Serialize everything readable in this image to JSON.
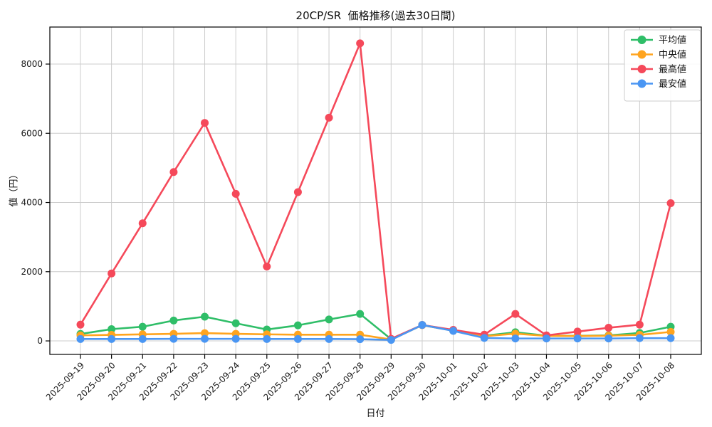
{
  "chart_data": {
    "type": "line",
    "title": "20CP/SR  価格推移(過去30日間)",
    "xlabel": "日付",
    "ylabel": "値（円）",
    "x": [
      "2025-09-19",
      "2025-09-20",
      "2025-09-21",
      "2025-09-22",
      "2025-09-23",
      "2025-09-24",
      "2025-09-25",
      "2025-09-26",
      "2025-09-27",
      "2025-09-28",
      "2025-09-29",
      "2025-09-30",
      "2025-10-01",
      "2025-10-02",
      "2025-10-03",
      "2025-10-04",
      "2025-10-05",
      "2025-10-06",
      "2025-10-07",
      "2025-10-08"
    ],
    "yticks": [
      0,
      2000,
      4000,
      6000,
      8000
    ],
    "ylim": [
      -390,
      9070
    ],
    "grid": true,
    "legend_position": "upper right",
    "series": [
      {
        "name": "平均値",
        "color": "#2fbe68",
        "values": [
          200,
          340,
          410,
          590,
          700,
          510,
          330,
          450,
          620,
          780,
          50,
          460,
          300,
          150,
          250,
          150,
          145,
          160,
          230,
          410
        ]
      },
      {
        "name": "中央値",
        "color": "#ffa41e",
        "values": [
          160,
          175,
          190,
          205,
          225,
          205,
          190,
          180,
          180,
          180,
          40,
          455,
          295,
          135,
          210,
          145,
          140,
          150,
          175,
          260
        ]
      },
      {
        "name": "最高値",
        "color": "#f5495a",
        "values": [
          470,
          1950,
          3400,
          4880,
          6300,
          4250,
          2150,
          4300,
          6450,
          8600,
          60,
          460,
          320,
          180,
          780,
          160,
          270,
          380,
          470,
          3980
        ]
      },
      {
        "name": "最安値",
        "color": "#4a96f3",
        "values": [
          55,
          55,
          55,
          60,
          60,
          60,
          55,
          55,
          55,
          50,
          30,
          460,
          290,
          85,
          70,
          70,
          70,
          70,
          80,
          80
        ]
      }
    ]
  },
  "style": {
    "grid_color": "#cccccc",
    "spine_color": "#000000",
    "background": "#ffffff",
    "tick_label_color": "#1a1a1a",
    "legend_border": "#cccccc",
    "legend_background": "#ffffff"
  }
}
